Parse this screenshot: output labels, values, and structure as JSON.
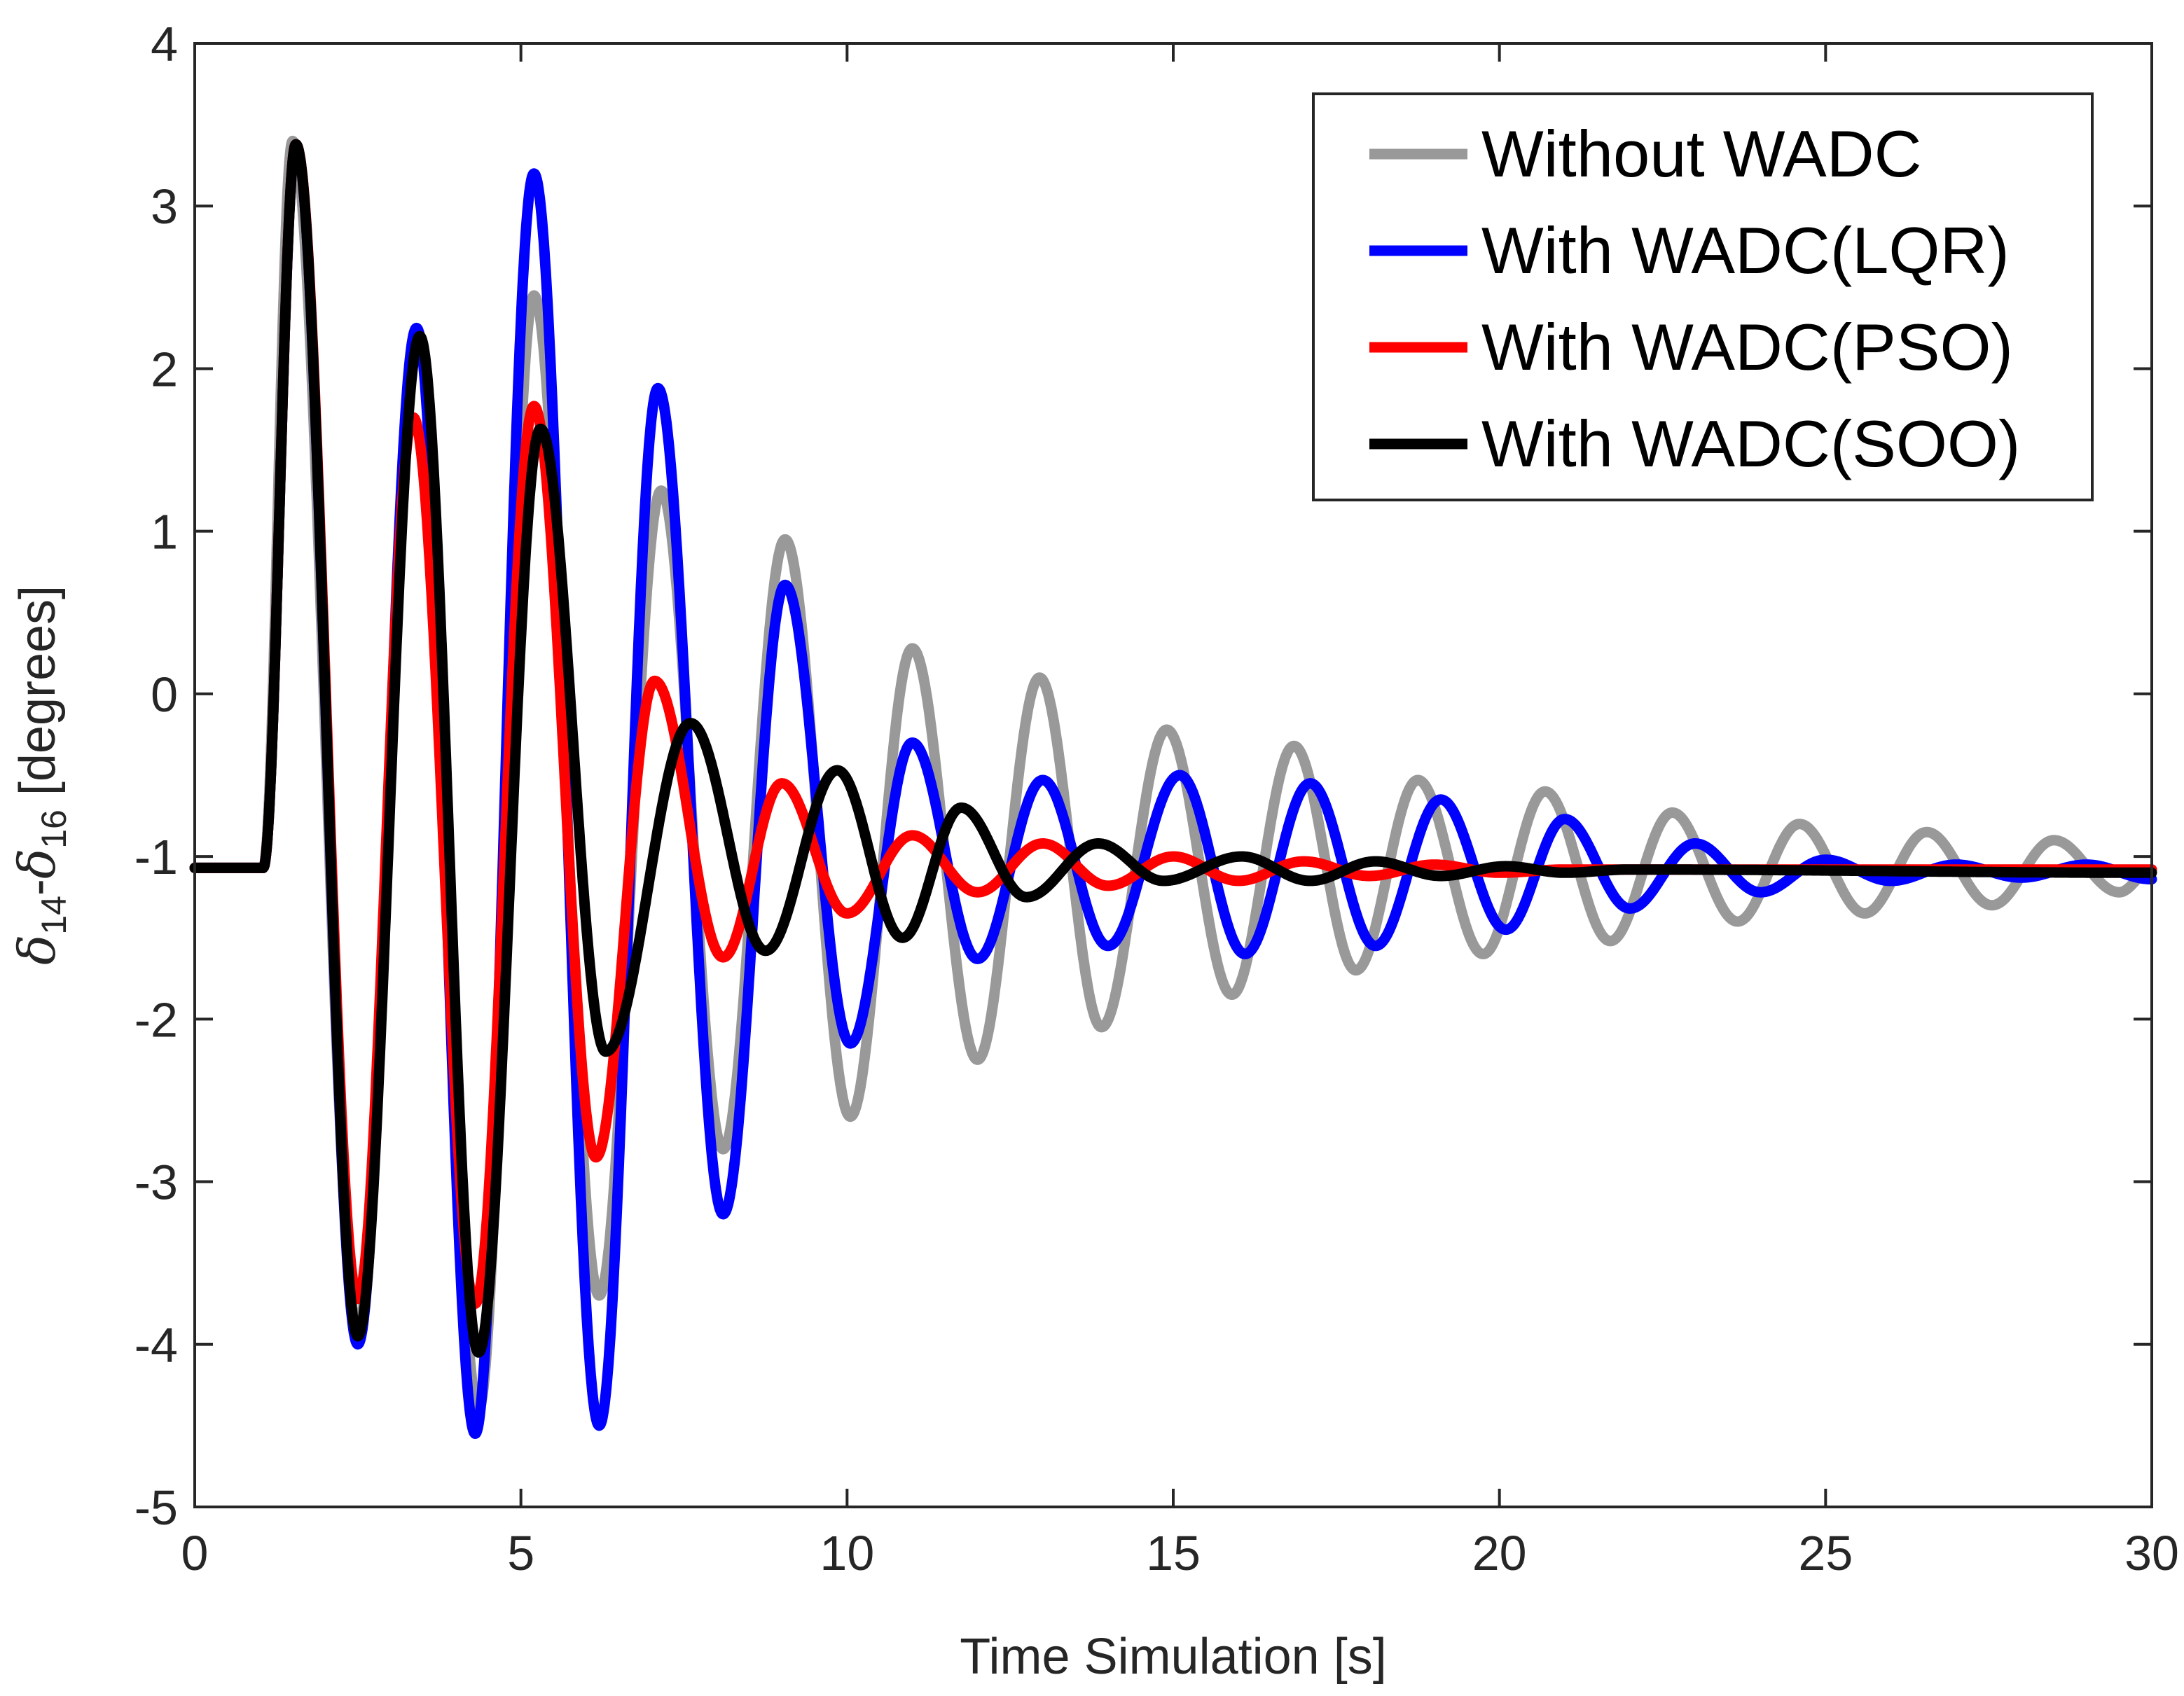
{
  "chart_data": {
    "type": "line",
    "title": "",
    "xlabel": "Time Simulation [s]",
    "ylabel": {
      "delta": "δ",
      "sub_a": "14",
      "dash": "-",
      "sub_b": "16",
      "unit": " [degrees]"
    },
    "xlim": [
      0,
      30
    ],
    "ylim": [
      -5,
      4
    ],
    "xticks": [
      0,
      5,
      10,
      15,
      20,
      25,
      30
    ],
    "xtick_labels": [
      "0",
      "5",
      "10",
      "15",
      "20",
      "25",
      "30"
    ],
    "yticks": [
      -5,
      -4,
      -3,
      -2,
      -1,
      0,
      1,
      2,
      3,
      4
    ],
    "ytick_labels": [
      "-5",
      "-4",
      "-3",
      "-2",
      "-1",
      "0",
      "1",
      "2",
      "3",
      "4"
    ],
    "grid": false,
    "legend_position": "top-right",
    "series": [
      {
        "name": "Without WADC",
        "color": "#999999",
        "extrema": [
          [
            0,
            -1.07
          ],
          [
            1.05,
            -1.07
          ],
          [
            1.5,
            3.4
          ],
          [
            2.5,
            -3.9
          ],
          [
            3.4,
            2.25
          ],
          [
            4.35,
            -4.4
          ],
          [
            5.2,
            2.45
          ],
          [
            6.2,
            -3.7
          ],
          [
            7.15,
            1.25
          ],
          [
            8.1,
            -2.8
          ],
          [
            9.05,
            0.95
          ],
          [
            10.05,
            -2.6
          ],
          [
            11.0,
            0.28
          ],
          [
            12.0,
            -2.25
          ],
          [
            12.95,
            0.1
          ],
          [
            13.9,
            -2.05
          ],
          [
            14.9,
            -0.22
          ],
          [
            15.9,
            -1.85
          ],
          [
            16.85,
            -0.32
          ],
          [
            17.8,
            -1.7
          ],
          [
            18.75,
            -0.53
          ],
          [
            19.75,
            -1.6
          ],
          [
            20.7,
            -0.6
          ],
          [
            21.7,
            -1.52
          ],
          [
            22.65,
            -0.73
          ],
          [
            23.65,
            -1.4
          ],
          [
            24.6,
            -0.8
          ],
          [
            25.6,
            -1.35
          ],
          [
            26.55,
            -0.85
          ],
          [
            27.55,
            -1.3
          ],
          [
            28.5,
            -0.9
          ],
          [
            29.5,
            -1.22
          ],
          [
            30.0,
            -1.08
          ]
        ]
      },
      {
        "name": "With WADC(LQR)",
        "color": "#0000ff",
        "extrema": [
          [
            0,
            -1.07
          ],
          [
            1.05,
            -1.07
          ],
          [
            1.55,
            3.38
          ],
          [
            2.5,
            -4.0
          ],
          [
            3.4,
            2.25
          ],
          [
            4.3,
            -4.55
          ],
          [
            5.2,
            3.2
          ],
          [
            6.2,
            -4.5
          ],
          [
            7.1,
            1.88
          ],
          [
            8.1,
            -3.2
          ],
          [
            9.05,
            0.67
          ],
          [
            10.05,
            -2.15
          ],
          [
            11.0,
            -0.3
          ],
          [
            12.0,
            -1.63
          ],
          [
            13.0,
            -0.53
          ],
          [
            14.0,
            -1.55
          ],
          [
            15.1,
            -0.5
          ],
          [
            16.1,
            -1.6
          ],
          [
            17.1,
            -0.55
          ],
          [
            18.1,
            -1.55
          ],
          [
            19.1,
            -0.65
          ],
          [
            20.1,
            -1.45
          ],
          [
            21.0,
            -0.77
          ],
          [
            22.0,
            -1.32
          ],
          [
            23.0,
            -0.92
          ],
          [
            24.0,
            -1.22
          ],
          [
            25.0,
            -1.02
          ],
          [
            26.0,
            -1.15
          ],
          [
            27.0,
            -1.05
          ],
          [
            28.0,
            -1.13
          ],
          [
            29.0,
            -1.05
          ],
          [
            30.0,
            -1.14
          ]
        ]
      },
      {
        "name": "With WADC(PSO)",
        "color": "#ff0000",
        "extrema": [
          [
            0,
            -1.07
          ],
          [
            1.05,
            -1.07
          ],
          [
            1.55,
            3.38
          ],
          [
            2.5,
            -3.72
          ],
          [
            3.35,
            1.7
          ],
          [
            4.3,
            -3.75
          ],
          [
            5.2,
            1.77
          ],
          [
            6.15,
            -2.85
          ],
          [
            7.05,
            0.08
          ],
          [
            8.1,
            -1.62
          ],
          [
            9.0,
            -0.55
          ],
          [
            10.0,
            -1.35
          ],
          [
            11.0,
            -0.87
          ],
          [
            12.0,
            -1.22
          ],
          [
            13.0,
            -0.92
          ],
          [
            14.0,
            -1.18
          ],
          [
            15.0,
            -1.0
          ],
          [
            16.0,
            -1.15
          ],
          [
            17.0,
            -1.03
          ],
          [
            18.0,
            -1.12
          ],
          [
            19.0,
            -1.05
          ],
          [
            20.0,
            -1.1
          ],
          [
            21.0,
            -1.08
          ],
          [
            30.0,
            -1.08
          ]
        ]
      },
      {
        "name": "With WADC(SOO)",
        "color": "#000000",
        "extrema": [
          [
            0,
            -1.07
          ],
          [
            1.05,
            -1.07
          ],
          [
            1.55,
            3.38
          ],
          [
            2.5,
            -3.95
          ],
          [
            3.45,
            2.2
          ],
          [
            4.35,
            -4.05
          ],
          [
            5.3,
            1.63
          ],
          [
            6.3,
            -2.2
          ],
          [
            7.6,
            -0.18
          ],
          [
            8.75,
            -1.58
          ],
          [
            9.85,
            -0.47
          ],
          [
            10.85,
            -1.5
          ],
          [
            11.75,
            -0.7
          ],
          [
            12.75,
            -1.25
          ],
          [
            13.85,
            -0.92
          ],
          [
            14.85,
            -1.15
          ],
          [
            16.05,
            -1.0
          ],
          [
            17.1,
            -1.15
          ],
          [
            18.1,
            -1.03
          ],
          [
            19.1,
            -1.12
          ],
          [
            20.1,
            -1.06
          ],
          [
            21.0,
            -1.1
          ],
          [
            22.0,
            -1.08
          ],
          [
            30.0,
            -1.1
          ]
        ]
      }
    ]
  }
}
